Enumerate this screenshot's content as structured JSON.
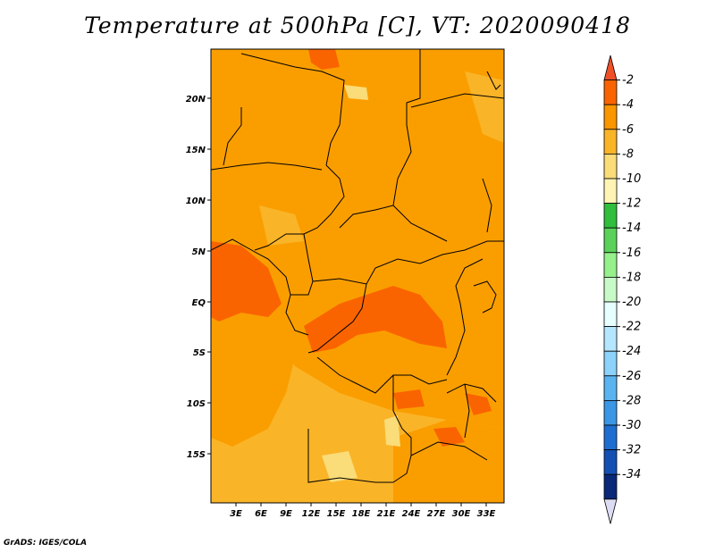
{
  "title": "Temperature at 500hPa [C], VT: 2020090418",
  "footer": "GrADS: IGES/COLA",
  "lat_labels": [
    "20N",
    "15N",
    "10N",
    "5N",
    "EQ",
    "5S",
    "10S",
    "15S"
  ],
  "lon_labels": [
    "3E",
    "6E",
    "9E",
    "12E",
    "15E",
    "18E",
    "21E",
    "24E",
    "27E",
    "30E",
    "33E"
  ],
  "colorbar": {
    "labels": [
      "-2",
      "-4",
      "-6",
      "-8",
      "-10",
      "-12",
      "-14",
      "-16",
      "-18",
      "-20",
      "-22",
      "-24",
      "-26",
      "-28",
      "-30",
      "-32",
      "-34"
    ],
    "colors": [
      "#f05028",
      "#fa6400",
      "#fa9600",
      "#fab428",
      "#fadc78",
      "#fff4b4",
      "#30be3c",
      "#5ad25a",
      "#96f08c",
      "#c8fac8",
      "#e6ffff",
      "#b4e6ff",
      "#8cd2fa",
      "#5ab4f0",
      "#3c96e6",
      "#1e6ed2",
      "#1450b4",
      "#0a2878",
      "#dcdcf5"
    ]
  }
}
